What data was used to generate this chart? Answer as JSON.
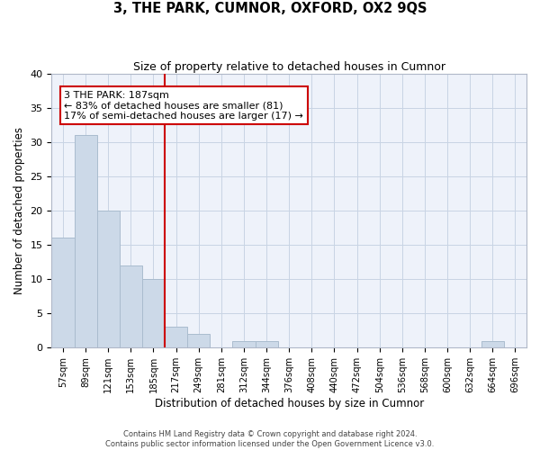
{
  "title": "3, THE PARK, CUMNOR, OXFORD, OX2 9QS",
  "subtitle": "Size of property relative to detached houses in Cumnor",
  "xlabel": "Distribution of detached houses by size in Cumnor",
  "ylabel": "Number of detached properties",
  "bins": [
    "57sqm",
    "89sqm",
    "121sqm",
    "153sqm",
    "185sqm",
    "217sqm",
    "249sqm",
    "281sqm",
    "312sqm",
    "344sqm",
    "376sqm",
    "408sqm",
    "440sqm",
    "472sqm",
    "504sqm",
    "536sqm",
    "568sqm",
    "600sqm",
    "632sqm",
    "664sqm",
    "696sqm"
  ],
  "values": [
    16,
    31,
    20,
    12,
    10,
    3,
    2,
    0,
    1,
    1,
    0,
    0,
    0,
    0,
    0,
    0,
    0,
    0,
    0,
    1,
    0
  ],
  "bar_color": "#ccd9e8",
  "bar_edge_color": "#aabcce",
  "grid_color": "#c8d4e4",
  "background_color": "#eef2fa",
  "vline_color": "#cc0000",
  "annotation_text": "3 THE PARK: 187sqm\n← 83% of detached houses are smaller (81)\n17% of semi-detached houses are larger (17) →",
  "annotation_box_color": "#ffffff",
  "annotation_box_edge": "#cc0000",
  "ylim": [
    0,
    40
  ],
  "yticks": [
    0,
    5,
    10,
    15,
    20,
    25,
    30,
    35,
    40
  ],
  "footer1": "Contains HM Land Registry data © Crown copyright and database right 2024.",
  "footer2": "Contains public sector information licensed under the Open Government Licence v3.0."
}
